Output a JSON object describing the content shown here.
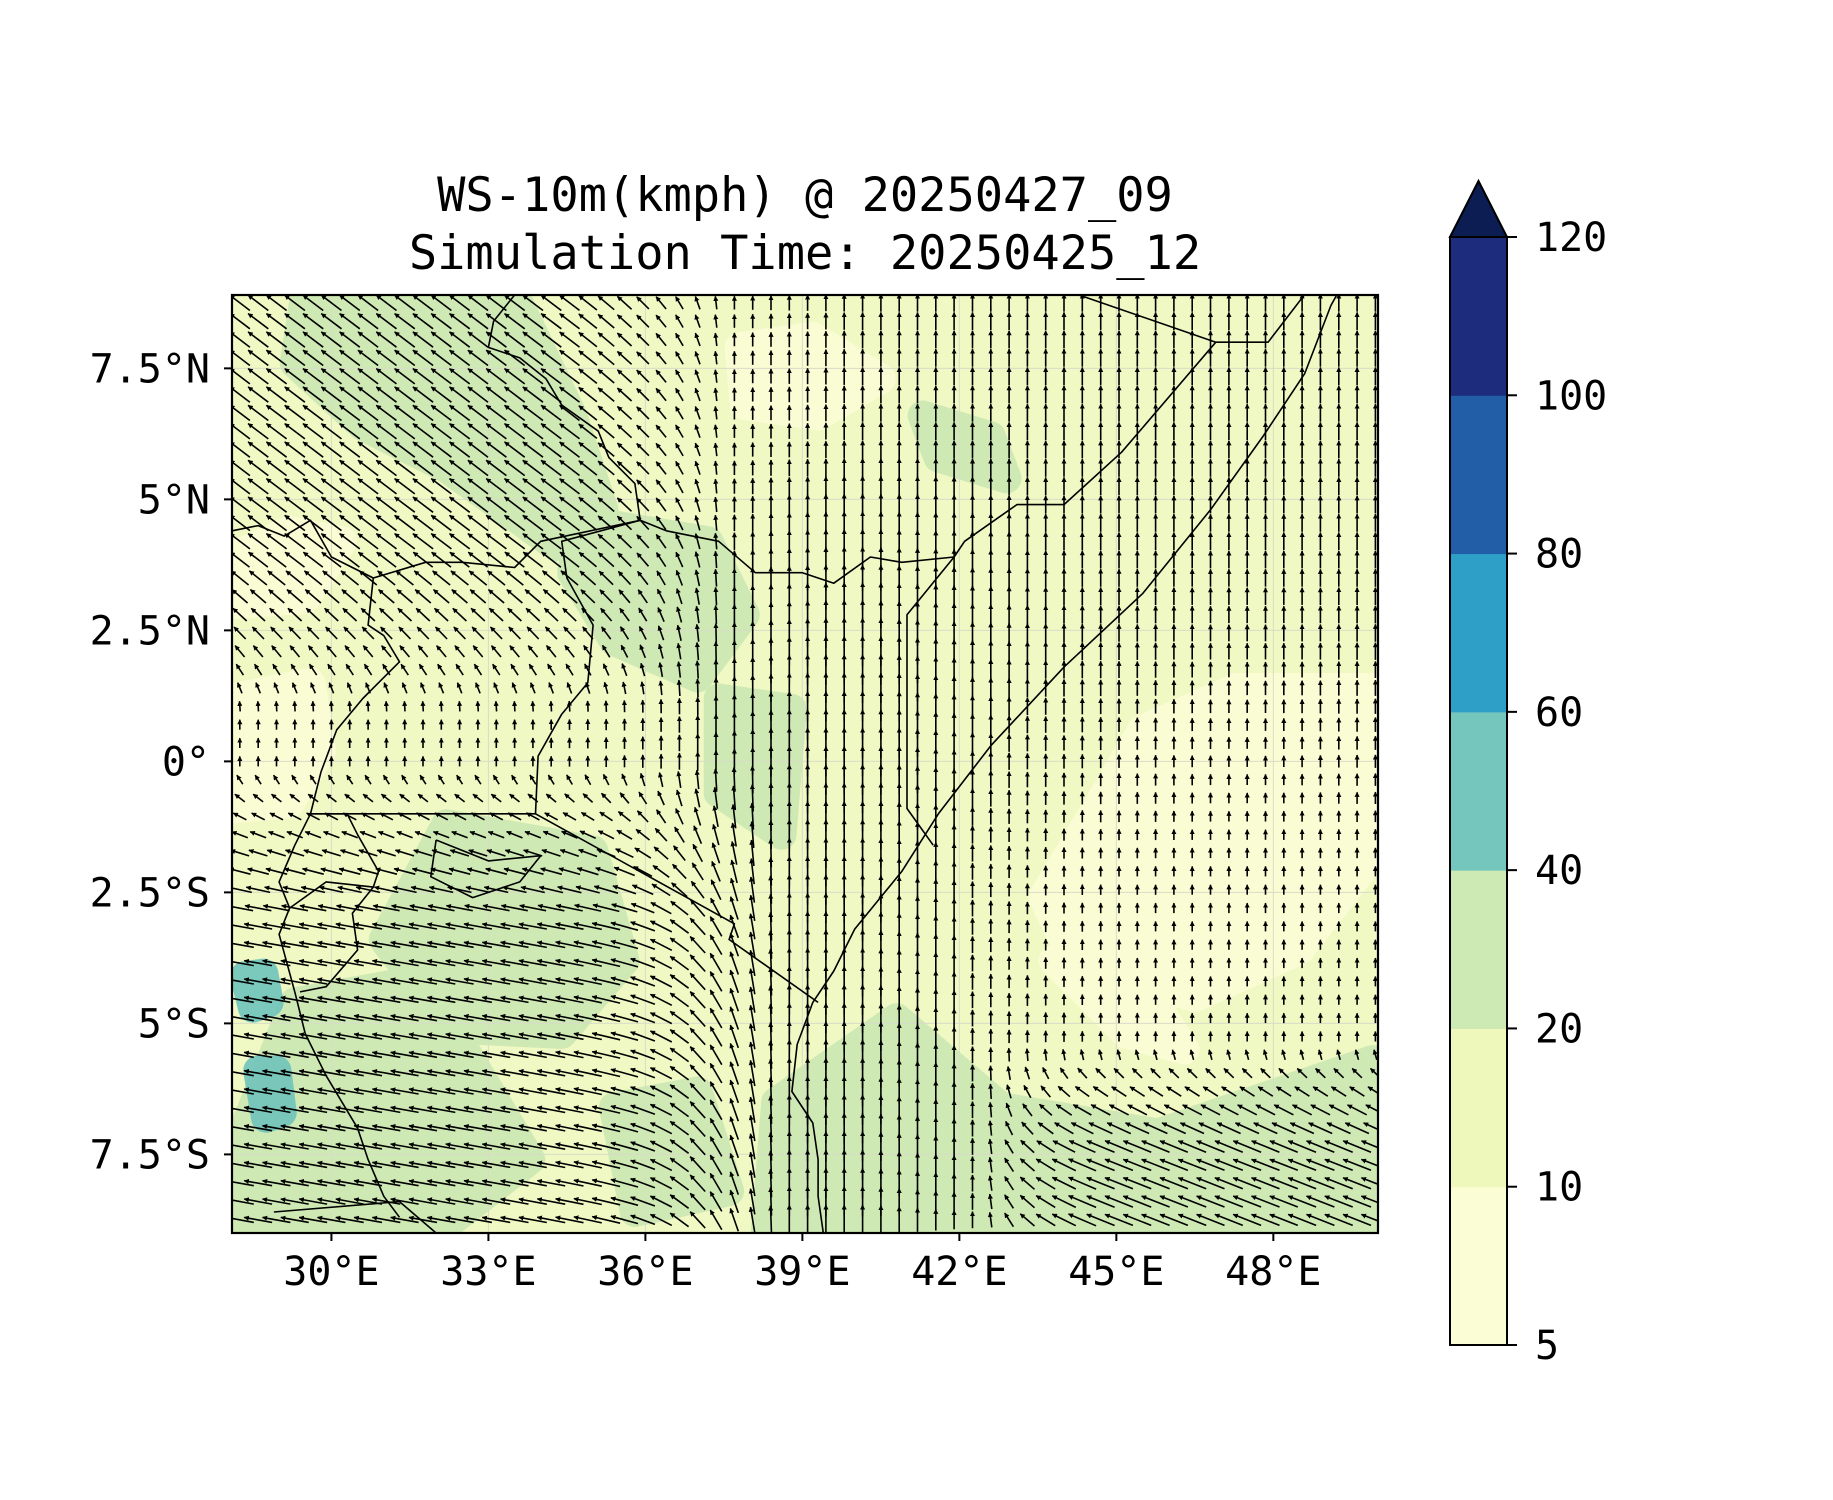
{
  "title": {
    "line1": "WS-10m(kmph) @ 20250427_09",
    "line2": "Simulation Time: 20250425_12"
  },
  "map": {
    "lon_range": [
      28.1,
      50.0
    ],
    "lat_range": [
      -9.0,
      8.9
    ],
    "lon_ticks": [
      30,
      33,
      36,
      39,
      42,
      45,
      48
    ],
    "lat_ticks": [
      7.5,
      5,
      2.5,
      0,
      -2.5,
      -5,
      -7.5
    ],
    "lon_tick_labels": [
      "30°E",
      "33°E",
      "36°E",
      "39°E",
      "42°E",
      "45°E",
      "48°E"
    ],
    "lat_tick_labels": [
      "7.5°N",
      "5°N",
      "2.5°N",
      "0°",
      "2.5°S",
      "5°S",
      "7.5°S"
    ],
    "background_color": "#f0f8c4",
    "boundary_color": "#000000",
    "vector_color": "#000000",
    "gridlines": true
  },
  "colorbar": {
    "levels": [
      5,
      10,
      20,
      40,
      60,
      80,
      100,
      120
    ],
    "tick_labels": [
      "5",
      "10",
      "20",
      "40",
      "60",
      "80",
      "100",
      "120"
    ],
    "colors": [
      "#fbfdd4",
      "#eff8bb",
      "#cde9b4",
      "#75c6bc",
      "#2e9fc6",
      "#225ea8",
      "#1d2c7c"
    ],
    "extend_color": "#0b1d52",
    "extend": "max"
  }
}
